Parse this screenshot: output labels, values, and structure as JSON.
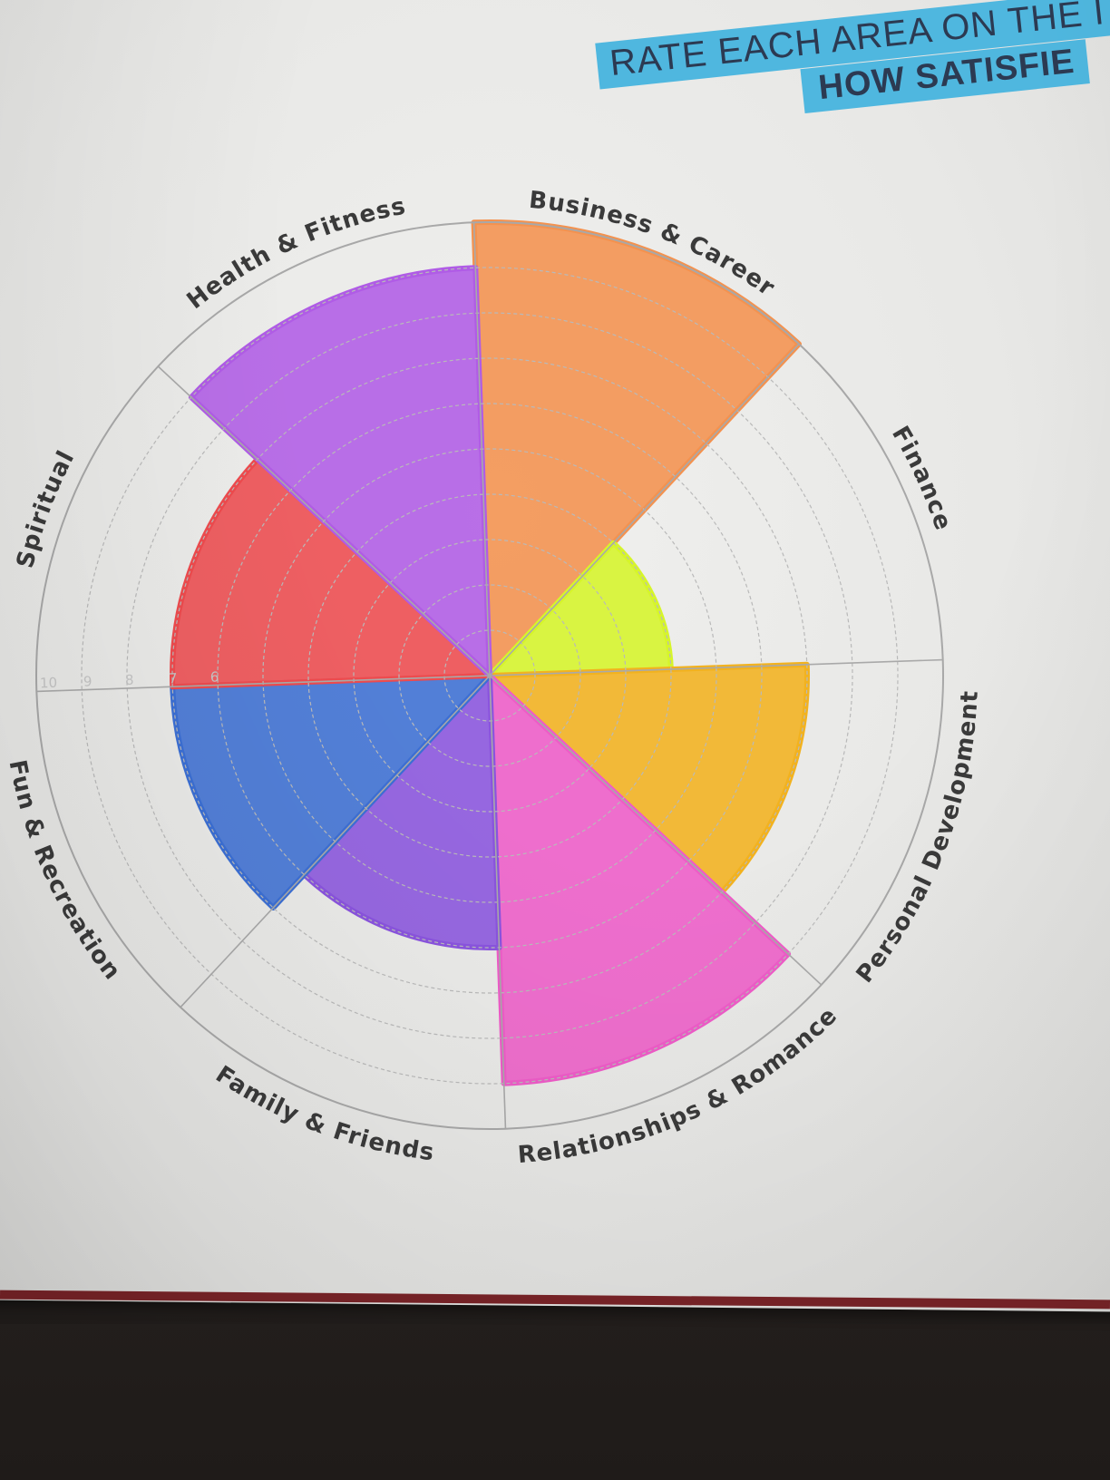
{
  "header": {
    "line1": "RATE EACH AREA ON THE I",
    "line2": "HOW SATISFIE"
  },
  "wheel": {
    "scale_numbers": [
      "10",
      "9",
      "8",
      "7",
      "6"
    ],
    "max_rating": 10,
    "segments": [
      {
        "label": "Business & Career",
        "rating": 10,
        "color": "#f4924f"
      },
      {
        "label": "Finance",
        "rating": 4,
        "color": "#d6f52a"
      },
      {
        "label": "Personal Development",
        "rating": 7,
        "color": "#f2b21f"
      },
      {
        "label": "Relationships & Romance",
        "rating": 9,
        "color": "#ee5cc8"
      },
      {
        "label": "Family & Friends",
        "rating": 6,
        "color": "#8a54de"
      },
      {
        "label": "Fun & Recreation",
        "rating": 7,
        "color": "#3c6fd4"
      },
      {
        "label": "Spiritual",
        "rating": 7,
        "color": "#ee4b4e"
      },
      {
        "label": "Health & Fitness",
        "rating": 9,
        "color": "#b05ce6"
      }
    ]
  }
}
